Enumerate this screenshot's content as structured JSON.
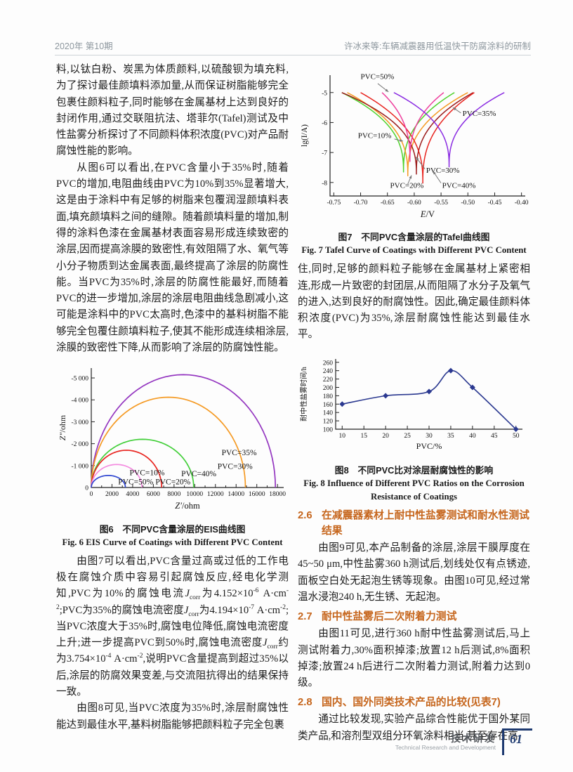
{
  "colors": {
    "accent": "#c6661d",
    "navy": "#1e3a70",
    "headergray": "#8d979e"
  },
  "header": {
    "left": "2020年 第10期",
    "right": "许冰来等:车辆减震器用低温快干防腐涂料的研制"
  },
  "left_column": {
    "para1": "料,以钛白粉、炭黑为体质颜料,以硫酸钡为填充料,为了探讨最佳颜填料添加量,从而保证树脂能够完全包裹住颜料粒子,同时能够在金属基材上达到良好的封闭作用,通过交联阻抗法、塔菲尔(Tafel)测试及中性盐雾分析探讨了不同颜料体积浓度(PVC)对产品耐腐蚀性能的影响。",
    "para2": "从图6可以看出,在PVC含量小于35%时,随着PVC的增加,电阻曲线由PVC为10%到35%显著增大,这是由于涂料中有足够的树脂来包覆润湿颜填料表面,填充颜填料之间的缝隙。随着颜填料量的增加,制得的涂料色漆在金属基材表面容易形成连续致密的涂层,因而提高涂膜的致密性,有效阻隔了水、氧气等小分子物质到达金属表面,最终提高了涂层的防腐性能。当PVC为35%时,涂层的防腐性能最好,而随着PVC的进一步增加,涂层的涂层电阻曲线急剧减小,这可能是涂料中的PVC太高时,色漆中的基料树脂不能够完全包覆住颜填料粒子,使其不能形成连续相涂层,涂膜的致密性下降,从而影响了涂层的防腐蚀性能。",
    "fig6_caption_zh": "图6　不同PVC含量涂层的EIS曲线图",
    "fig6_caption_en": "Fig. 6 EIS Curve of Coatings with Different PVC Content",
    "para3_html": "由图7可以看出,PVC含量过高或过低的工作电极在腐蚀介质中容易引起腐蚀反应,经电化学测知,PVC为10%的腐蚀电流<i>J</i><sub>corr</sub>为4.152×10<sup>-6</sup> A·cm<sup>-2</sup>;PVC为35%的腐蚀电流密度<i>J</i><sub>corr</sub>为4.194×10<sup>-7</sup> A·cm<sup>-2</sup>;当PVC浓度大于35%时,腐蚀电位降低,腐蚀电流密度上升;进一步提高PVC到50%时,腐蚀电流密度<i>J</i><sub>corr</sub>约为3.754×10<sup>-4</sup> A·cm<sup>-2</sup>,说明PVC含量提高到超过35%以后,涂层的防腐效果变差,与交流阻抗得出的结果保持一致。",
    "para4": "由图8可见,当PVC浓度为35%时,涂层耐腐蚀性能达到最佳水平,基料树脂能够把颜料粒子完全包裹"
  },
  "right_column": {
    "fig7_caption_zh": "图7　不同PVC含量涂层的Tafel曲线图",
    "fig7_caption_en": "Fig. 7 Tafel Curve of Coatings with Different PVC Content",
    "para5": "住,同时,足够的颜料粒子能够在金属基材上紧密相连,形成一片致密的封团层,从而阻隔了水分子及氧气的进入,达到良好的耐腐蚀性。因此,确定最佳颜料体积浓度(PVC)为35%,涂层耐腐蚀性能达到最佳水平。",
    "fig8_caption_zh": "图8　不同PVC比对涂层耐腐蚀性的影响",
    "fig8_caption_en": "Fig. 8 Influence of Different PVC Ratios on the Corrosion Resistance of Coatings",
    "sections": [
      {
        "num": "2.6",
        "title": "在减震器素材上耐中性盐雾测试和耐水性测试结果",
        "para": "由图9可见,本产品制备的涂层,涂层干膜厚度在45~50 μm,中性盐雾360 h测试后,划线处仅有点锈迹,面板空白处无起泡生锈等现象。由图10可见,经过常温水浸泡240 h,无生锈、无起泡。"
      },
      {
        "num": "2.7",
        "title": "耐中性盐雾后二次附着力测试",
        "para": "由图11可见,进行360 h耐中性盐雾测试后,马上测试附着力,30%面积掉漆;放置12 h后测试,8%面积掉漆;放置24 h后进行二次附着力测试,附着力达到0级。"
      },
      {
        "num": "2.8",
        "title": "国内、国外同类技术产品的比较(见表7)",
        "para": "通过比较发现,实验产品综合性能优于国外某同类产品,和溶剂型双组分环氧涂料相当,甚至存在高"
      }
    ]
  },
  "footer": {
    "zh": "技术研发",
    "en": "Technical Research and Development",
    "page": "61"
  },
  "chart_data": [
    {
      "type": "line",
      "name": "fig6-eis-nyquist",
      "title": "图6 不同PVC含量涂层的EIS曲线图",
      "xlabel_italic": "Z′",
      "xlabel_rest": "/ohm",
      "ylabel_italic": "Z″",
      "ylabel_rest": "/ohm",
      "xlim": [
        0,
        18600
      ],
      "ylim": [
        0,
        -5450
      ],
      "grid": false,
      "legend_position": "inline-annotations",
      "xticks": [
        [
          0,
          "0"
        ],
        [
          2000,
          "2000"
        ],
        [
          4000,
          "4000"
        ],
        [
          6000,
          "6000"
        ],
        [
          8000,
          "8000"
        ],
        [
          10000,
          "10000"
        ],
        [
          12000,
          "12000"
        ],
        [
          14000,
          "14000"
        ],
        [
          16000,
          "16000"
        ],
        [
          18000,
          "18000"
        ]
      ],
      "xminor": [
        1000,
        3000,
        5000,
        7000,
        9000,
        11000,
        13000,
        15000,
        17000
      ],
      "yticks": [
        [
          0,
          "0"
        ],
        [
          -1000,
          "-1 000"
        ],
        [
          -2000,
          "-2 000"
        ],
        [
          -3000,
          "-3 000"
        ],
        [
          -4000,
          "-4 000"
        ],
        [
          -5000,
          "-5 000"
        ]
      ],
      "series": [
        {
          "name": "PVC=35%",
          "color": "#9436c0",
          "diameter": 17800,
          "peak": 5150
        },
        {
          "name": "PVC=30%",
          "color": "#f59a23",
          "diameter": 14900,
          "peak": 4120
        },
        {
          "name": "PVC=40%",
          "color": "#43cf3a",
          "diameter": 9900,
          "peak": 2200
        },
        {
          "name": "PVC=10%",
          "color": "#e8241f",
          "diameter": 6800,
          "peak": 1700
        },
        {
          "name": "PVC=20%",
          "color": "#f48ce0",
          "diameter": 4900,
          "peak": 1050
        },
        {
          "name": "PVC=50%",
          "color": "#3148d2",
          "diameter": 3300,
          "peak": 550
        }
      ],
      "annotations": [
        {
          "text": "PVC=35%",
          "x": 12600,
          "y": -1480
        },
        {
          "text": "PVC=30%",
          "x": 12200,
          "y": -850
        },
        {
          "text": "PVC=10%",
          "x": 3700,
          "y": -560
        },
        {
          "text": "PVC=40%",
          "x": 8700,
          "y": -520
        },
        {
          "text": "PVC=50%",
          "x": 2600,
          "y": -150
        },
        {
          "text": "PVC=20%",
          "x": 6200,
          "y": -150
        }
      ]
    },
    {
      "type": "line",
      "name": "fig7-tafel",
      "title": "图7 不同PVC含量涂层的Tafel曲线图",
      "xlabel_italic": "E",
      "xlabel_rest": "/V",
      "ylabel_italic": "",
      "ylabel_rest": "lg(I/A)",
      "xlim": [
        -0.757,
        -0.393
      ],
      "ylim": [
        -8.45,
        -4.42
      ],
      "grid": false,
      "legend_position": "inline-annotations",
      "xticks": [
        [
          -0.75,
          "-0.75"
        ],
        [
          -0.7,
          "-0.70"
        ],
        [
          -0.65,
          "-0.65"
        ],
        [
          -0.6,
          "-0.60"
        ],
        [
          -0.55,
          "-0.55"
        ],
        [
          -0.5,
          "-0.50"
        ],
        [
          -0.45,
          "-0.45"
        ],
        [
          -0.4,
          "-0.40"
        ]
      ],
      "yticks": [
        [
          -5,
          "-5"
        ],
        [
          -6,
          "-6"
        ],
        [
          -7,
          "-7"
        ],
        [
          -8,
          "-8"
        ]
      ],
      "series": [
        {
          "name": "PVC=10%",
          "color": "#4fd22c",
          "E0": -0.62,
          "ymin": -7.65,
          "xl": -0.735,
          "xr": -0.525
        },
        {
          "name": "PVC=20%",
          "color": "#f59a23",
          "E0": -0.612,
          "ymin": -7.78,
          "xl": -0.725,
          "xr": -0.5
        },
        {
          "name": "PVC=30%",
          "color": "#9b1b1b",
          "E0": -0.596,
          "ymin": -7.72,
          "xl": -0.735,
          "xr": -0.49
        },
        {
          "name": "PVC=40%",
          "color": "#e8241f",
          "E0": -0.584,
          "ymin": -8.02,
          "xl": -0.7,
          "xr": -0.488
        },
        {
          "name": "PVC=50%",
          "color": "#ee3f9d",
          "E0": -0.608,
          "ymin": -7.3,
          "xl": -0.66,
          "xr": -0.545
        },
        {
          "name": "PVC=35%",
          "color": "#8a2be2",
          "E0": -0.535,
          "ymin": -7.48,
          "xl": -0.638,
          "xr": -0.432
        }
      ],
      "annotations": [
        {
          "text": "PVC=50%",
          "x": -0.7,
          "y": -4.55,
          "arrow": [
            -0.668,
            -4.7,
            -0.648,
            -4.98
          ]
        },
        {
          "text": "PVC=35%",
          "x": -0.51,
          "y": -5.78,
          "arrow": [
            -0.513,
            -5.68,
            -0.528,
            -5.5
          ]
        },
        {
          "text": "PVC=10%",
          "x": -0.705,
          "y": -6.52,
          "arrow": [
            -0.637,
            -6.55,
            -0.621,
            -6.62
          ]
        },
        {
          "text": "PVC=30%",
          "x": -0.578,
          "y": -7.68,
          "arrow": [
            -0.58,
            -7.55,
            -0.597,
            -7.15
          ]
        },
        {
          "text": "PVC=20%",
          "x": -0.645,
          "y": -8.18,
          "arrow": [
            -0.612,
            -8.05,
            -0.605,
            -7.76
          ]
        },
        {
          "text": "PVC=40%",
          "x": -0.548,
          "y": -8.18,
          "arrow": [
            -0.55,
            -8.02,
            -0.565,
            -7.62
          ]
        }
      ]
    },
    {
      "type": "line",
      "name": "fig8-salt-spray",
      "title": "图8 不同PVC比对涂层耐腐蚀性的影响",
      "xlabel": "PVC/%",
      "ylabel": "耐中性盐雾时间/h",
      "x": [
        10,
        20,
        30,
        35,
        40,
        50
      ],
      "values": [
        160,
        180,
        190,
        240,
        200,
        100
      ],
      "color": "#2b3990",
      "marker": "diamond",
      "xlim": [
        8.5,
        51.5
      ],
      "ylim": [
        100,
        268
      ],
      "grid": false,
      "legend_position": "none",
      "xticks": [
        [
          10,
          "10"
        ],
        [
          15,
          "15"
        ],
        [
          20,
          "20"
        ],
        [
          25,
          "25"
        ],
        [
          30,
          "30"
        ],
        [
          35,
          "35"
        ],
        [
          40,
          "40"
        ],
        [
          45,
          "45"
        ],
        [
          50,
          "50"
        ]
      ],
      "yticks": [
        [
          100,
          "100"
        ],
        [
          120,
          "120"
        ],
        [
          140,
          "140"
        ],
        [
          160,
          "160"
        ],
        [
          180,
          "180"
        ],
        [
          200,
          "200"
        ],
        [
          220,
          "220"
        ],
        [
          240,
          "240"
        ],
        [
          260,
          "260"
        ]
      ]
    }
  ]
}
